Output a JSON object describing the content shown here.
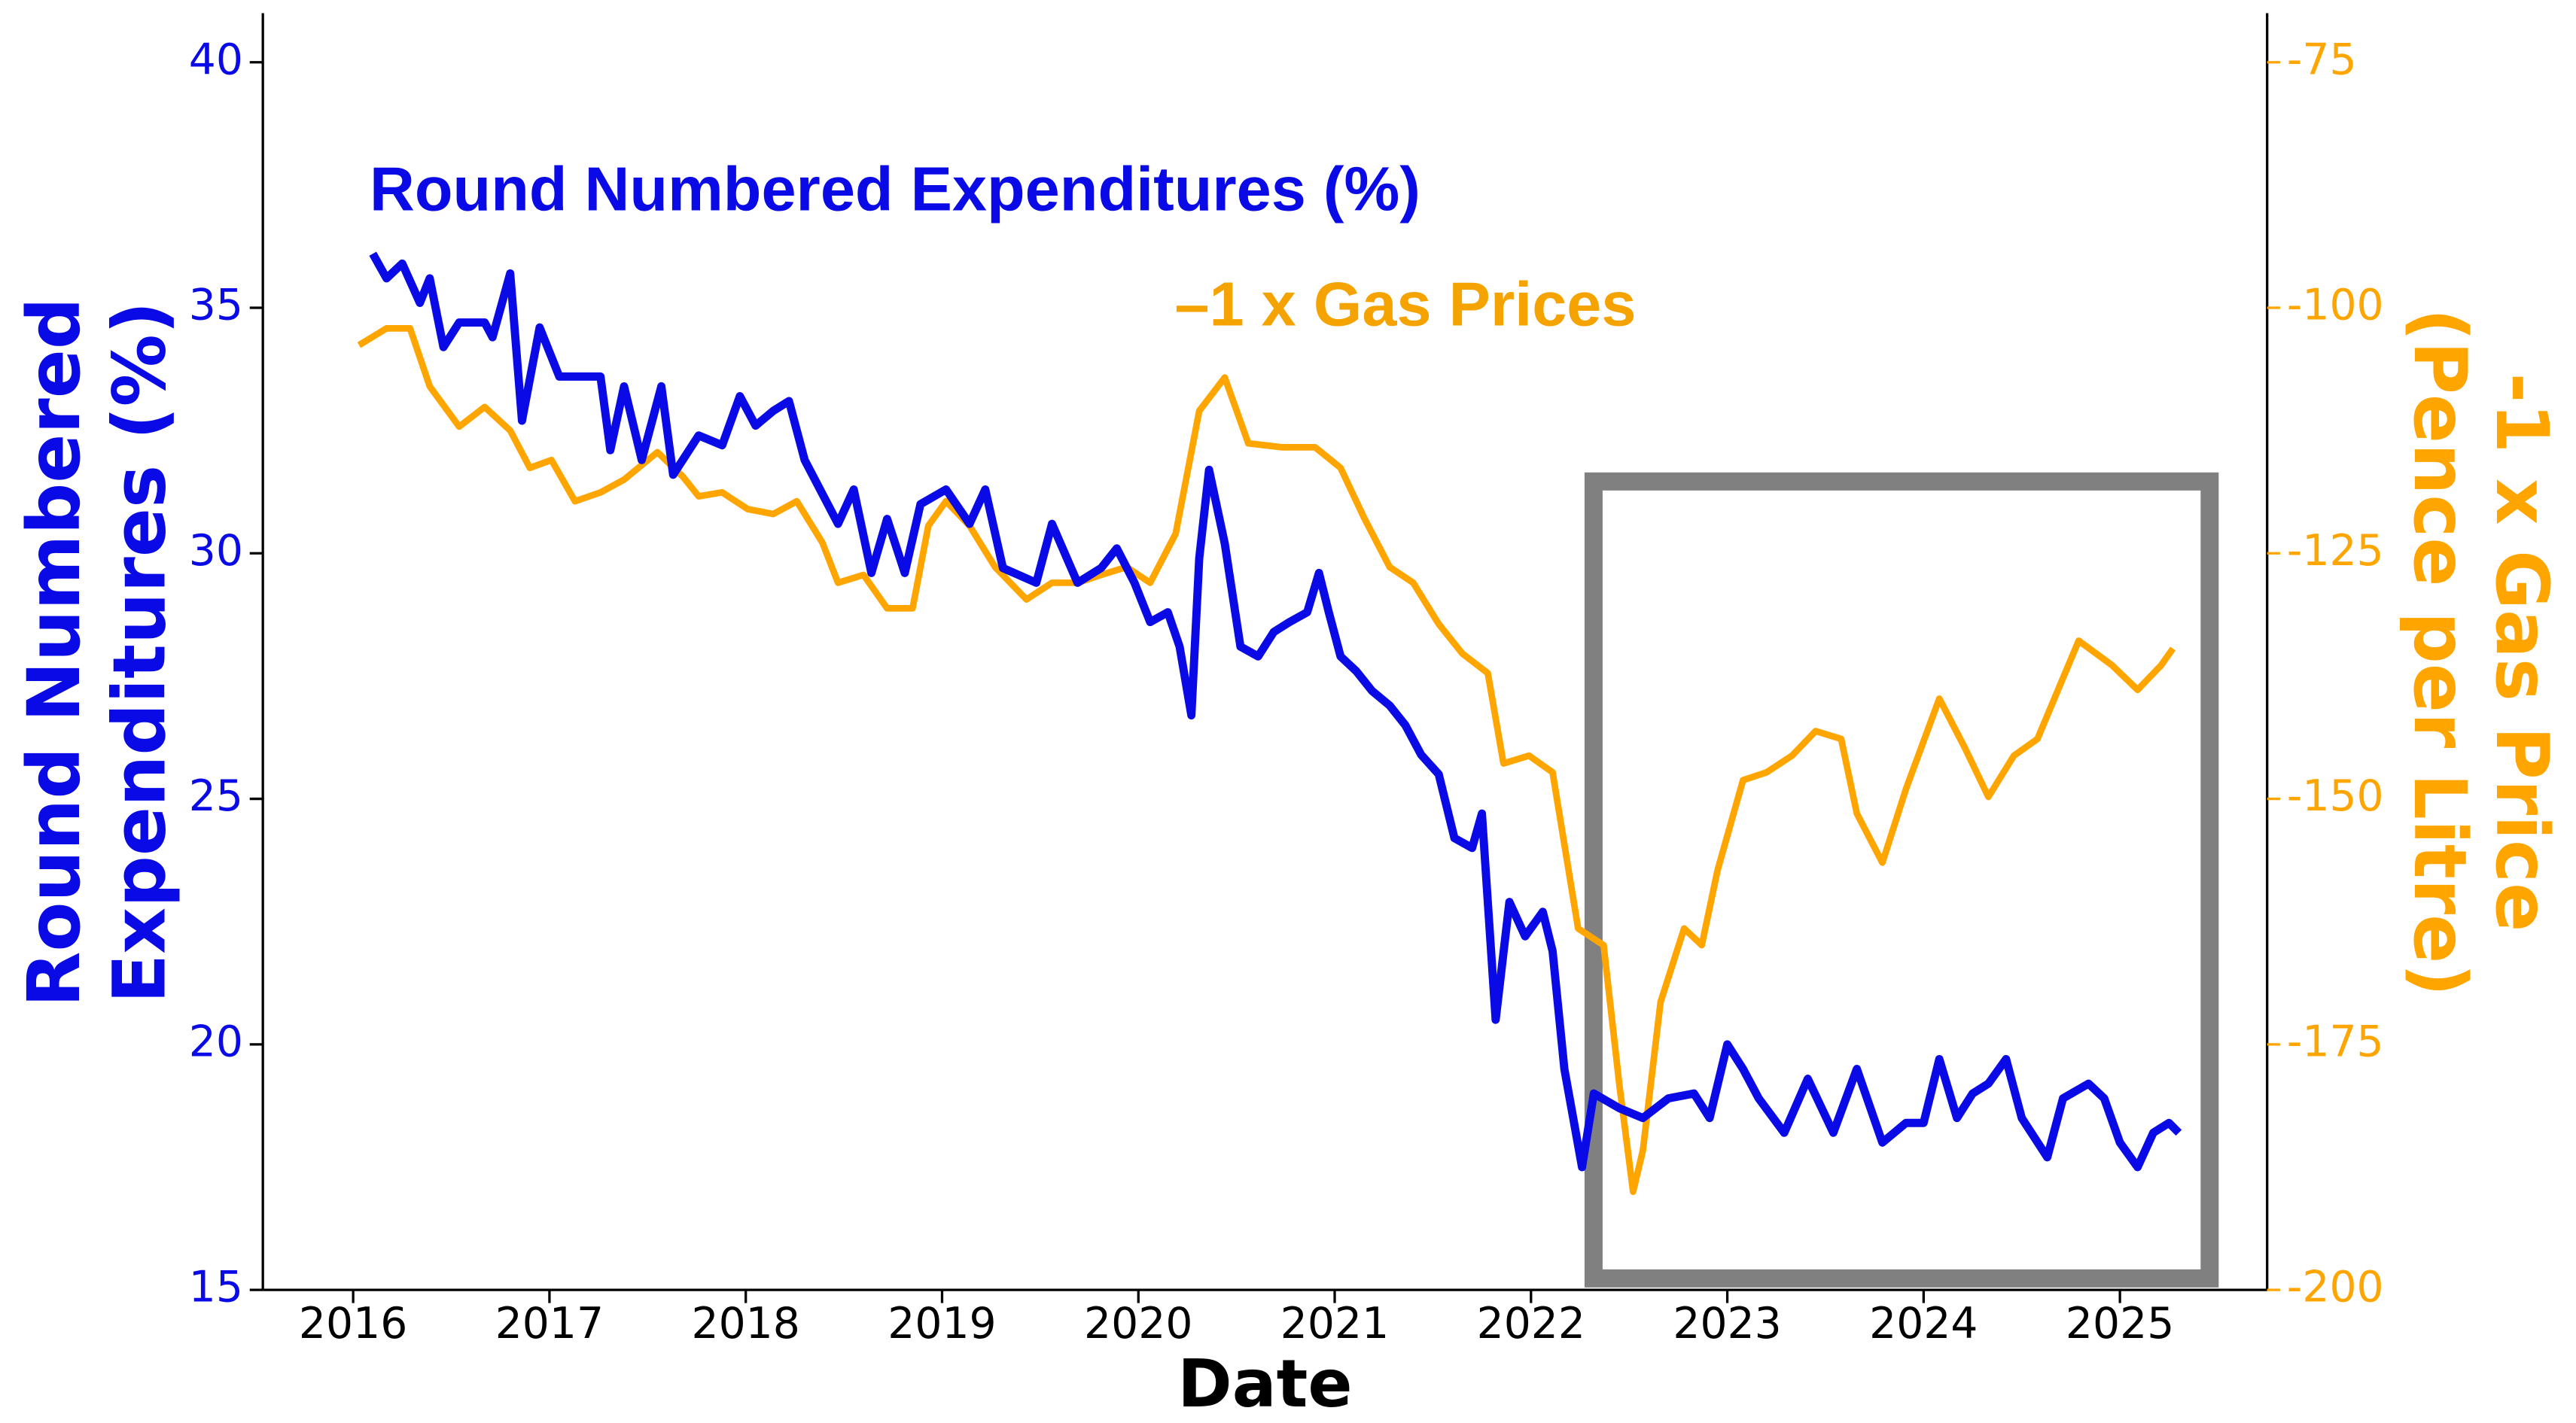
{
  "chart_data": {
    "type": "line",
    "annotations": [
      {
        "text": "Round Numbered Expenditures (%)",
        "color": "#0a0ae6"
      },
      {
        "text": "–1 x Gas Prices",
        "color": "#f5a300"
      }
    ],
    "xlabel": "Date",
    "ylabel": [
      "Round Numbered",
      "Expenditures (%)"
    ],
    "y2label": [
      "-1 x Gas Price",
      "(Pence per Litre)"
    ],
    "xlim": [
      2015.54,
      2025.75
    ],
    "xticks": [
      2016,
      2017,
      2018,
      2019,
      2020,
      2021,
      2022,
      2023,
      2024,
      2025
    ],
    "ylim": [
      15,
      41
    ],
    "yticks": [
      15,
      20,
      25,
      30,
      35,
      40
    ],
    "y2lim": [
      -200,
      -70
    ],
    "y2ticks": [
      -200,
      -175,
      -150,
      -125,
      -100,
      -75
    ],
    "series": [
      {
        "color": "#0a0ae6",
        "x": [
          2016.1,
          2016.17,
          2016.25,
          2016.34,
          2016.39,
          2016.46,
          2016.54,
          2016.67,
          2016.71,
          2016.8,
          2016.86,
          2016.95,
          2017.05,
          2017.17,
          2017.26,
          2017.31,
          2017.38,
          2017.47,
          2017.57,
          2017.63,
          2017.76,
          2017.88,
          2017.97,
          2018.05,
          2018.14,
          2018.22,
          2018.3,
          2018.47,
          2018.55,
          2018.64,
          2018.72,
          2018.81,
          2018.89,
          2019.02,
          2019.14,
          2019.22,
          2019.31,
          2019.48,
          2019.56,
          2019.69,
          2019.81,
          2019.89,
          2019.98,
          2020.06,
          2020.15,
          2020.21,
          2020.27,
          2020.31,
          2020.36,
          2020.44,
          2020.52,
          2020.61,
          2020.69,
          2020.77,
          2020.86,
          2020.92,
          2020.97,
          2021.03,
          2021.11,
          2021.19,
          2021.28,
          2021.36,
          2021.44,
          2021.53,
          2021.61,
          2021.7,
          2021.75,
          2021.82,
          2021.89,
          2021.97,
          2022.06,
          2022.11,
          2022.17,
          2022.26,
          2022.32,
          2022.45,
          2022.57,
          2022.7,
          2022.83,
          2022.91,
          2023.0,
          2023.08,
          2023.16,
          2023.29,
          2023.41,
          2023.54,
          2023.66,
          2023.79,
          2023.91,
          2024.0,
          2024.08,
          2024.17,
          2024.25,
          2024.33,
          2024.42,
          2024.5,
          2024.63,
          2024.71,
          2024.84,
          2024.92,
          2025.0,
          2025.09,
          2025.17,
          2025.25,
          2025.3
        ],
        "values": [
          36.1,
          35.6,
          35.9,
          35.1,
          35.6,
          34.2,
          34.7,
          34.7,
          34.4,
          35.7,
          32.7,
          34.6,
          33.6,
          33.6,
          33.6,
          32.1,
          33.4,
          31.9,
          33.4,
          31.6,
          32.4,
          32.2,
          33.2,
          32.6,
          32.9,
          33.1,
          31.9,
          30.6,
          31.3,
          29.6,
          30.7,
          29.6,
          31.0,
          31.3,
          30.6,
          31.3,
          29.7,
          29.4,
          30.6,
          29.4,
          29.7,
          30.1,
          29.4,
          28.6,
          28.8,
          28.1,
          26.7,
          29.9,
          31.7,
          30.2,
          28.1,
          27.9,
          28.4,
          28.6,
          28.8,
          29.6,
          28.8,
          27.9,
          27.6,
          27.2,
          26.9,
          26.5,
          25.9,
          25.5,
          24.2,
          24.0,
          24.7,
          20.5,
          22.9,
          22.2,
          22.7,
          21.9,
          19.5,
          17.5,
          19.0,
          18.7,
          18.5,
          18.9,
          19.0,
          18.5,
          20.0,
          19.5,
          18.9,
          18.2,
          19.3,
          18.2,
          19.5,
          18.0,
          18.4,
          18.4,
          19.7,
          18.5,
          19.0,
          19.2,
          19.7,
          18.5,
          17.7,
          18.9,
          19.2,
          18.9,
          18.0,
          17.5,
          18.2,
          18.4,
          18.2
        ]
      },
      {
        "color": "#ffa500",
        "axis": "y2",
        "x": [
          2016.03,
          2016.17,
          2016.29,
          2016.39,
          2016.54,
          2016.67,
          2016.8,
          2016.9,
          2017.01,
          2017.13,
          2017.26,
          2017.38,
          2017.55,
          2017.68,
          2017.76,
          2017.88,
          2018.01,
          2018.14,
          2018.26,
          2018.39,
          2018.47,
          2018.6,
          2018.72,
          2018.85,
          2018.93,
          2019.02,
          2019.14,
          2019.27,
          2019.43,
          2019.56,
          2019.69,
          2019.81,
          2019.94,
          2020.06,
          2020.19,
          2020.31,
          2020.44,
          2020.56,
          2020.73,
          2020.9,
          2021.03,
          2021.15,
          2021.28,
          2021.4,
          2021.53,
          2021.65,
          2021.78,
          2021.86,
          2021.99,
          2022.11,
          2022.24,
          2022.37,
          2022.45,
          2022.52,
          2022.57,
          2022.66,
          2022.78,
          2022.87,
          2022.95,
          2023.08,
          2023.2,
          2023.33,
          2023.45,
          2023.58,
          2023.66,
          2023.79,
          2023.91,
          2024.08,
          2024.21,
          2024.33,
          2024.46,
          2024.58,
          2024.79,
          2024.96,
          2025.09,
          2025.21,
          2025.27
        ],
        "values": [
          -103.8,
          -102.1,
          -102.1,
          -108,
          -112.1,
          -110.1,
          -112.5,
          -116.3,
          -115.5,
          -119.7,
          -118.8,
          -117.5,
          -114.7,
          -117.2,
          -119.2,
          -118.8,
          -120.5,
          -121,
          -119.7,
          -123.9,
          -128,
          -127.2,
          -130.6,
          -130.6,
          -122.2,
          -119.7,
          -122.2,
          -126.4,
          -129.7,
          -128,
          -128,
          -127.2,
          -126.4,
          -128,
          -123,
          -110.5,
          -107.1,
          -113.8,
          -114.2,
          -114.2,
          -116.3,
          -121.4,
          -126.4,
          -128,
          -132.2,
          -135.2,
          -137.2,
          -146.4,
          -145.6,
          -147.3,
          -163.2,
          -164.9,
          -179.1,
          -190,
          -185.8,
          -170.7,
          -163.2,
          -164.9,
          -157.3,
          -148.1,
          -147.3,
          -145.6,
          -143.1,
          -143.9,
          -151.5,
          -156.5,
          -149,
          -139.8,
          -144.8,
          -149.8,
          -145.6,
          -143.9,
          -133.9,
          -136.4,
          -138.9,
          -136.4,
          -134.7
        ]
      }
    ]
  }
}
